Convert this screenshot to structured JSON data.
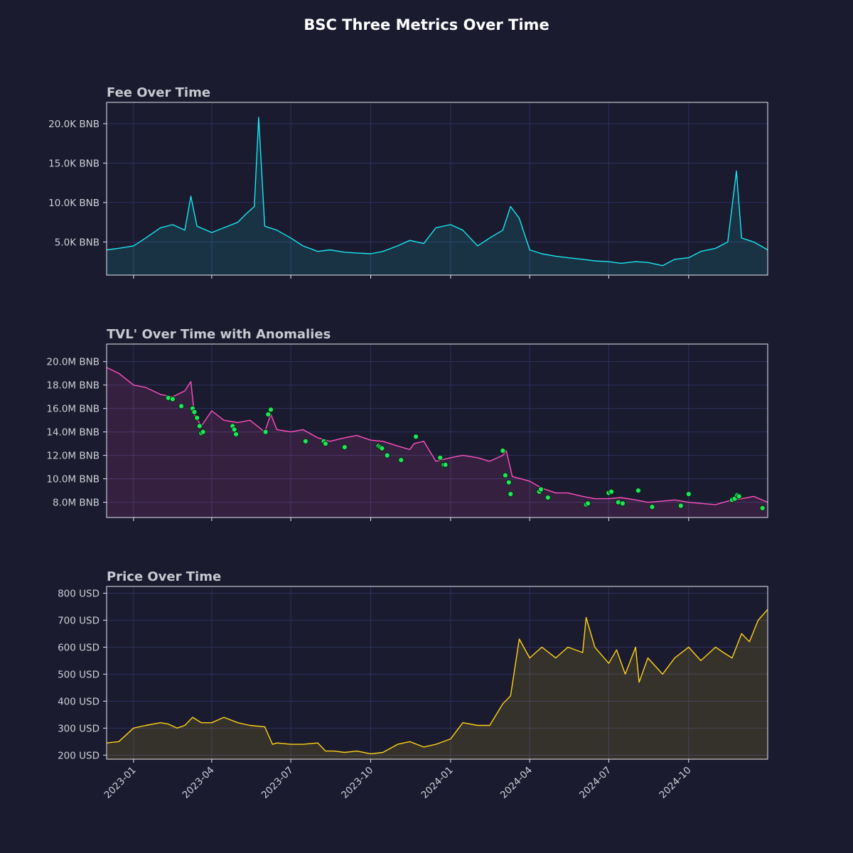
{
  "title": "BSC Three Metrics Over Time",
  "colors": {
    "background": "#1a1b2e",
    "fee": "#19e6f0",
    "tvl": "#ff4fc0",
    "price": "#ffd21a",
    "anomaly": "#1ee65a",
    "grid": "#2f3160"
  },
  "chart_data": [
    {
      "type": "line",
      "title": "Fee Over Time",
      "xlabel": "",
      "ylabel": "",
      "xlim": [
        "2022-12-01",
        "2024-12-31"
      ],
      "ylim": [
        800,
        22700
      ],
      "yticks": [
        {
          "v": 5000,
          "label": "5.0K BNB"
        },
        {
          "v": 10000,
          "label": "10.0K BNB"
        },
        {
          "v": 15000,
          "label": "15.0K BNB"
        },
        {
          "v": 20000,
          "label": "20.0K BNB"
        }
      ],
      "grid": true,
      "fill": true,
      "series": [
        {
          "x": [
            "2022-12-01",
            "2022-12-15",
            "2023-01-01",
            "2023-01-15",
            "2023-02-01",
            "2023-02-15",
            "2023-03-01",
            "2023-03-08",
            "2023-03-15",
            "2023-04-01",
            "2023-04-15",
            "2023-05-01",
            "2023-05-10",
            "2023-05-20",
            "2023-05-25",
            "2023-06-01",
            "2023-06-15",
            "2023-07-01",
            "2023-07-15",
            "2023-08-01",
            "2023-08-15",
            "2023-09-01",
            "2023-09-15",
            "2023-10-01",
            "2023-10-15",
            "2023-11-01",
            "2023-11-15",
            "2023-12-01",
            "2023-12-15",
            "2024-01-01",
            "2024-01-15",
            "2024-02-01",
            "2024-02-15",
            "2024-03-01",
            "2024-03-10",
            "2024-03-20",
            "2024-04-01",
            "2024-04-15",
            "2024-05-01",
            "2024-05-15",
            "2024-06-01",
            "2024-06-15",
            "2024-07-01",
            "2024-07-15",
            "2024-08-01",
            "2024-08-15",
            "2024-09-01",
            "2024-09-15",
            "2024-10-01",
            "2024-10-15",
            "2024-11-01",
            "2024-11-15",
            "2024-11-25",
            "2024-12-01",
            "2024-12-15",
            "2024-12-31"
          ],
          "y": [
            4000,
            4200,
            4500,
            5500,
            6800,
            7200,
            6500,
            10800,
            7000,
            6200,
            6800,
            7500,
            8500,
            9500,
            20800,
            7000,
            6500,
            5500,
            4500,
            3800,
            4000,
            3700,
            3600,
            3500,
            3800,
            4500,
            5200,
            4800,
            6800,
            7200,
            6500,
            4500,
            5500,
            6500,
            9500,
            8000,
            4000,
            3500,
            3200,
            3000,
            2800,
            2600,
            2500,
            2300,
            2500,
            2400,
            2000,
            2800,
            3000,
            3800,
            4200,
            5000,
            14000,
            5500,
            5000,
            4000
          ]
        }
      ]
    },
    {
      "type": "line",
      "title": "TVL' Over Time with Anomalies",
      "xlabel": "",
      "ylabel": "",
      "xlim": [
        "2022-12-01",
        "2024-12-31"
      ],
      "ylim": [
        6700000,
        21500000
      ],
      "yticks": [
        {
          "v": 8000000,
          "label": "8.0M BNB"
        },
        {
          "v": 10000000,
          "label": "10.0M BNB"
        },
        {
          "v": 12000000,
          "label": "12.0M BNB"
        },
        {
          "v": 14000000,
          "label": "14.0M BNB"
        },
        {
          "v": 16000000,
          "label": "16.0M BNB"
        },
        {
          "v": 18000000,
          "label": "18.0M BNB"
        },
        {
          "v": 20000000,
          "label": "20.0M BNB"
        }
      ],
      "grid": true,
      "fill": true,
      "series": [
        {
          "x": [
            "2022-12-01",
            "2022-12-15",
            "2023-01-01",
            "2023-01-15",
            "2023-02-01",
            "2023-02-15",
            "2023-03-01",
            "2023-03-08",
            "2023-03-12",
            "2023-03-20",
            "2023-04-01",
            "2023-04-15",
            "2023-05-01",
            "2023-05-15",
            "2023-06-01",
            "2023-06-08",
            "2023-06-15",
            "2023-07-01",
            "2023-07-15",
            "2023-08-01",
            "2023-08-15",
            "2023-09-01",
            "2023-09-15",
            "2023-10-01",
            "2023-10-15",
            "2023-11-01",
            "2023-11-15",
            "2023-11-20",
            "2023-12-01",
            "2023-12-15",
            "2024-01-01",
            "2024-01-15",
            "2024-02-01",
            "2024-02-15",
            "2024-03-01",
            "2024-03-05",
            "2024-03-12",
            "2024-04-01",
            "2024-04-15",
            "2024-05-01",
            "2024-05-15",
            "2024-06-01",
            "2024-06-15",
            "2024-07-01",
            "2024-07-15",
            "2024-08-01",
            "2024-08-15",
            "2024-09-01",
            "2024-09-15",
            "2024-10-01",
            "2024-10-15",
            "2024-11-01",
            "2024-11-15",
            "2024-12-01",
            "2024-12-15",
            "2024-12-31"
          ],
          "y": [
            19500000,
            19000000,
            18000000,
            17800000,
            17200000,
            17000000,
            17500000,
            18300000,
            15500000,
            14500000,
            15800000,
            15000000,
            14800000,
            15000000,
            14000000,
            15500000,
            14200000,
            14000000,
            14200000,
            13500000,
            13200000,
            13500000,
            13700000,
            13300000,
            13200000,
            12800000,
            12500000,
            13000000,
            13200000,
            11500000,
            11800000,
            12000000,
            11800000,
            11500000,
            12000000,
            12400000,
            10200000,
            9800000,
            9200000,
            8800000,
            8800000,
            8500000,
            8300000,
            8300000,
            8400000,
            8200000,
            8000000,
            8100000,
            8200000,
            8000000,
            7900000,
            7800000,
            8100000,
            8300000,
            8500000,
            8000000
          ]
        }
      ],
      "anomalies": {
        "x": [
          "2023-02-10",
          "2023-02-15",
          "2023-02-25",
          "2023-03-10",
          "2023-03-12",
          "2023-03-15",
          "2023-03-18",
          "2023-03-20",
          "2023-03-22",
          "2023-04-25",
          "2023-04-27",
          "2023-04-29",
          "2023-06-02",
          "2023-06-05",
          "2023-06-08",
          "2023-07-18",
          "2023-08-08",
          "2023-08-10",
          "2023-09-01",
          "2023-10-10",
          "2023-10-12",
          "2023-10-14",
          "2023-10-20",
          "2023-11-05",
          "2023-11-22",
          "2023-12-20",
          "2023-12-24",
          "2023-12-26",
          "2024-03-01",
          "2024-03-04",
          "2024-03-08",
          "2024-03-10",
          "2024-04-12",
          "2024-04-14",
          "2024-04-22",
          "2024-06-05",
          "2024-06-07",
          "2024-07-01",
          "2024-07-04",
          "2024-07-12",
          "2024-07-17",
          "2024-08-04",
          "2024-08-20",
          "2024-09-22",
          "2024-10-01",
          "2024-11-20",
          "2024-11-23",
          "2024-11-26",
          "2024-11-28",
          "2024-12-25"
        ],
        "y": [
          16900000,
          16800000,
          16200000,
          16000000,
          15700000,
          15200000,
          14500000,
          13900000,
          14000000,
          14500000,
          14200000,
          13800000,
          14000000,
          15500000,
          15900000,
          13200000,
          13200000,
          13000000,
          12700000,
          12800000,
          12700000,
          12600000,
          12000000,
          11600000,
          13600000,
          11800000,
          11200000,
          11200000,
          12400000,
          10300000,
          9700000,
          8700000,
          8900000,
          9100000,
          8400000,
          7800000,
          7900000,
          8800000,
          8900000,
          8000000,
          7900000,
          9000000,
          7600000,
          7700000,
          8700000,
          8200000,
          8300000,
          8600000,
          8500000,
          7500000
        ]
      }
    },
    {
      "type": "line",
      "title": "Price Over Time",
      "xlabel": "",
      "ylabel": "",
      "xlim": [
        "2022-12-01",
        "2024-12-31"
      ],
      "ylim": [
        185,
        825
      ],
      "yticks": [
        {
          "v": 200,
          "label": "200 USD"
        },
        {
          "v": 300,
          "label": "300 USD"
        },
        {
          "v": 400,
          "label": "400 USD"
        },
        {
          "v": 500,
          "label": "500 USD"
        },
        {
          "v": 600,
          "label": "600 USD"
        },
        {
          "v": 700,
          "label": "700 USD"
        },
        {
          "v": 800,
          "label": "800 USD"
        }
      ],
      "xticks": [
        {
          "v": "2023-01-01",
          "label": "2023-01"
        },
        {
          "v": "2023-04-01",
          "label": "2023-04"
        },
        {
          "v": "2023-07-01",
          "label": "2023-07"
        },
        {
          "v": "2023-10-01",
          "label": "2023-10"
        },
        {
          "v": "2024-01-01",
          "label": "2024-01"
        },
        {
          "v": "2024-04-01",
          "label": "2024-04"
        },
        {
          "v": "2024-07-01",
          "label": "2024-07"
        },
        {
          "v": "2024-10-01",
          "label": "2024-10"
        }
      ],
      "grid": true,
      "fill": true,
      "series": [
        {
          "x": [
            "2022-12-01",
            "2022-12-15",
            "2023-01-01",
            "2023-01-15",
            "2023-02-01",
            "2023-02-10",
            "2023-02-20",
            "2023-03-01",
            "2023-03-10",
            "2023-03-20",
            "2023-04-01",
            "2023-04-15",
            "2023-05-01",
            "2023-05-15",
            "2023-06-01",
            "2023-06-10",
            "2023-06-15",
            "2023-07-01",
            "2023-07-15",
            "2023-08-01",
            "2023-08-10",
            "2023-08-20",
            "2023-09-01",
            "2023-09-15",
            "2023-10-01",
            "2023-10-15",
            "2023-11-01",
            "2023-11-15",
            "2023-12-01",
            "2023-12-15",
            "2024-01-01",
            "2024-01-15",
            "2024-02-01",
            "2024-02-15",
            "2024-03-01",
            "2024-03-10",
            "2024-03-20",
            "2024-04-01",
            "2024-04-15",
            "2024-05-01",
            "2024-05-15",
            "2024-06-01",
            "2024-06-05",
            "2024-06-15",
            "2024-07-01",
            "2024-07-10",
            "2024-07-20",
            "2024-08-01",
            "2024-08-05",
            "2024-08-15",
            "2024-09-01",
            "2024-09-15",
            "2024-10-01",
            "2024-10-15",
            "2024-11-01",
            "2024-11-10",
            "2024-11-20",
            "2024-12-01",
            "2024-12-10",
            "2024-12-20",
            "2024-12-31"
          ],
          "y": [
            245,
            250,
            300,
            310,
            320,
            315,
            300,
            310,
            340,
            320,
            320,
            340,
            320,
            310,
            305,
            240,
            245,
            240,
            240,
            245,
            215,
            215,
            210,
            215,
            205,
            210,
            240,
            250,
            230,
            240,
            260,
            320,
            310,
            310,
            390,
            420,
            630,
            560,
            600,
            560,
            600,
            580,
            710,
            600,
            540,
            590,
            500,
            600,
            470,
            560,
            500,
            560,
            600,
            550,
            600,
            580,
            560,
            650,
            620,
            700,
            740
          ]
        }
      ]
    }
  ]
}
